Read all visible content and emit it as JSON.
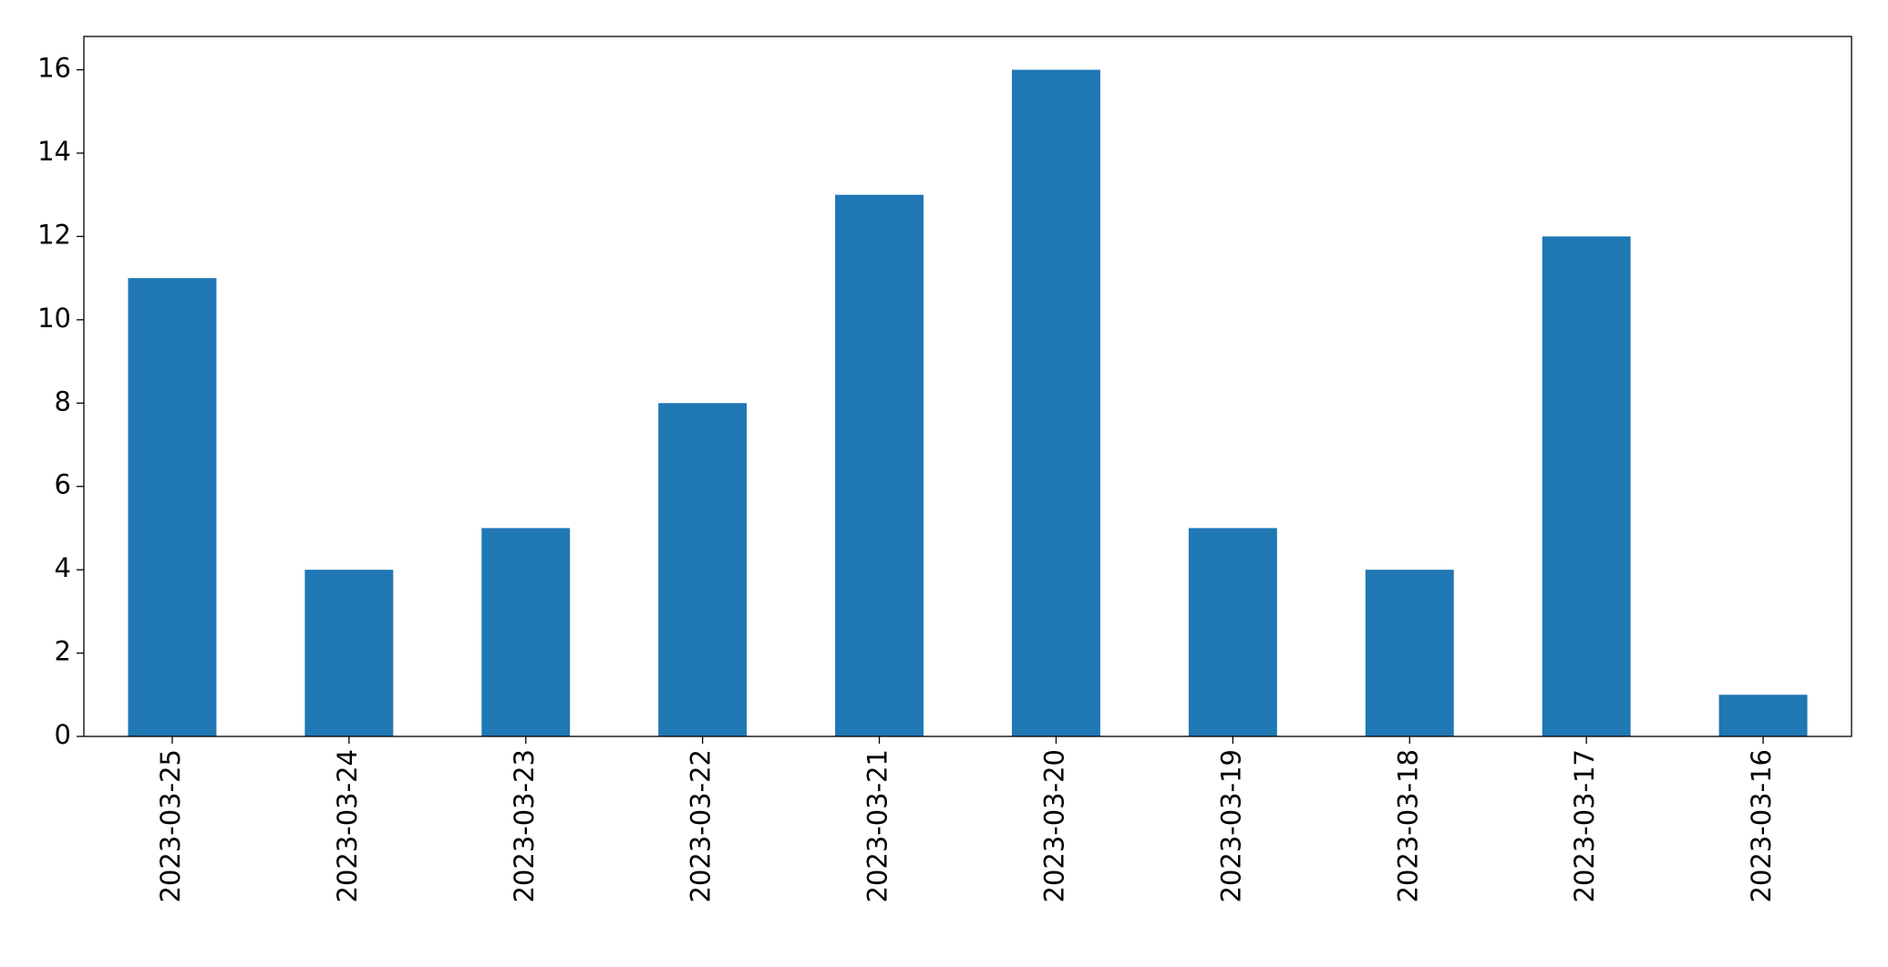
{
  "chart_data": {
    "type": "bar",
    "categories": [
      "2023-03-25",
      "2023-03-24",
      "2023-03-23",
      "2023-03-22",
      "2023-03-21",
      "2023-03-20",
      "2023-03-19",
      "2023-03-18",
      "2023-03-17",
      "2023-03-16"
    ],
    "values": [
      11,
      4,
      5,
      8,
      13,
      16,
      5,
      4,
      12,
      1
    ],
    "color": "#1f77b4",
    "ylim": [
      0,
      16.8
    ],
    "yticks": [
      0,
      2,
      4,
      6,
      8,
      10,
      12,
      14,
      16
    ],
    "grid": false
  }
}
